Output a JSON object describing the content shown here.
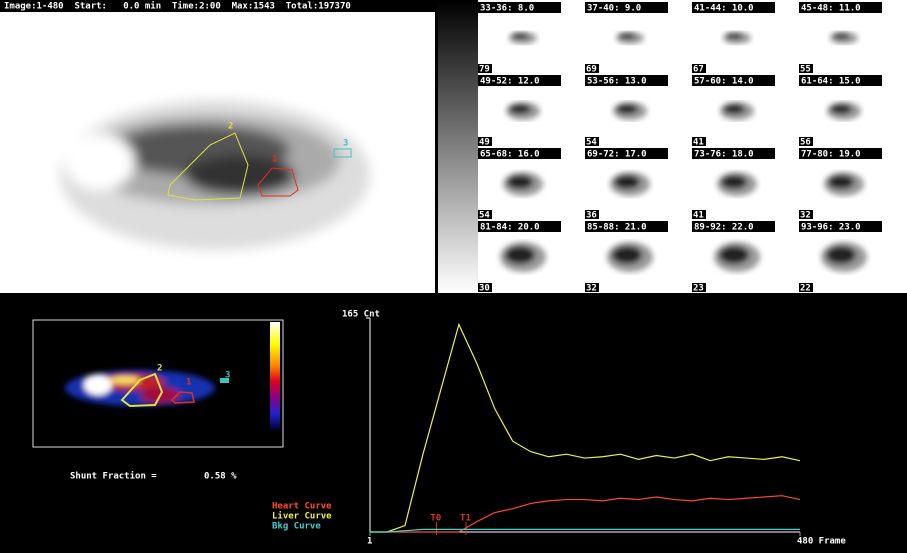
{
  "header": "Image:1-480  Start:   0.0 min  Time:2:00  Max:1543  Total:197370",
  "roi_labels": [
    "1",
    "2",
    "3"
  ],
  "frames": [
    {
      "label": "33-36: 8.0",
      "count": "79"
    },
    {
      "label": "37-40: 9.0",
      "count": "69"
    },
    {
      "label": "41-44: 10.0",
      "count": "67"
    },
    {
      "label": "45-48: 11.0",
      "count": "55"
    },
    {
      "label": "49-52: 12.0",
      "count": "49"
    },
    {
      "label": "53-56: 13.0",
      "count": "54"
    },
    {
      "label": "57-60: 14.0",
      "count": "41"
    },
    {
      "label": "61-64: 15.0",
      "count": "56"
    },
    {
      "label": "65-68: 16.0",
      "count": "54"
    },
    {
      "label": "69-72: 17.0",
      "count": "36"
    },
    {
      "label": "73-76: 18.0",
      "count": "41"
    },
    {
      "label": "77-80: 19.0",
      "count": "32"
    },
    {
      "label": "81-84: 20.0",
      "count": "30"
    },
    {
      "label": "85-88: 21.0",
      "count": "32"
    },
    {
      "label": "89-92: 22.0",
      "count": "23"
    },
    {
      "label": "93-96: 23.0",
      "count": "22"
    }
  ],
  "shunt": {
    "label": "Shunt Fraction =",
    "value": "0.58 %"
  },
  "chart_data": {
    "type": "line",
    "xlim": [
      1,
      480
    ],
    "ylim": [
      0,
      165
    ],
    "xticks": [
      1,
      {
        "value": 480,
        "label": "480 Frame"
      }
    ],
    "yticks": [
      {
        "value": 165,
        "label": "165 Cnt"
      }
    ],
    "markers": [
      {
        "value": 75,
        "label": "T0"
      },
      {
        "value": 108,
        "label": "T1"
      }
    ],
    "x": [
      1,
      20,
      40,
      60,
      80,
      100,
      120,
      140,
      160,
      180,
      200,
      220,
      240,
      260,
      280,
      300,
      320,
      340,
      360,
      380,
      400,
      420,
      440,
      460,
      480
    ],
    "series": [
      {
        "name": "Heart Curve",
        "color": "#ff4a2a",
        "values": [
          0,
          0,
          0,
          0,
          0,
          0,
          8,
          15,
          18,
          22,
          24,
          25,
          25,
          24,
          26,
          25,
          27,
          25,
          24,
          26,
          25,
          26,
          27,
          28,
          25
        ]
      },
      {
        "name": "Liver Curve",
        "color": "#f0f040",
        "values": [
          0,
          0,
          5,
          60,
          110,
          160,
          130,
          95,
          70,
          62,
          58,
          60,
          57,
          58,
          60,
          56,
          59,
          57,
          60,
          55,
          58,
          57,
          56,
          58,
          55
        ]
      },
      {
        "name": "Bkg Curve",
        "color": "#40d0d0",
        "values": [
          0,
          0,
          1,
          2,
          2,
          2,
          2,
          2,
          2,
          2,
          2,
          2,
          2,
          2,
          2,
          2,
          2,
          2,
          2,
          2,
          2,
          2,
          2,
          2,
          2
        ]
      }
    ]
  }
}
